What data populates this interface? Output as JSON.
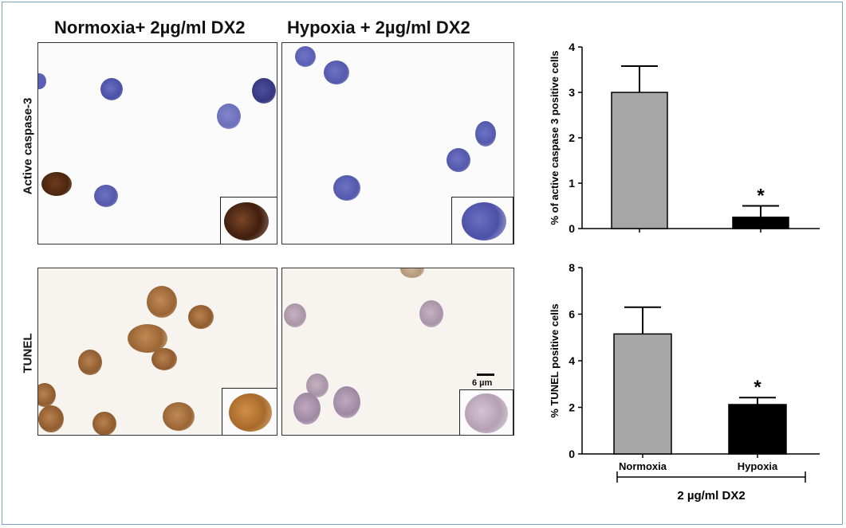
{
  "figure": {
    "column_titles": [
      "Normoxia+ 2µg/ml DX2",
      "Hypoxia + 2µg/ml DX2"
    ],
    "row_labels": [
      "Active caspase-3",
      "TUNEL"
    ],
    "scale_bar_label": "6 µm",
    "bracket_label": "2 µg/ml DX2",
    "significance_marker": "*"
  },
  "chart_data": [
    {
      "type": "bar",
      "categories": [
        "Normoxia",
        "Hypoxia"
      ],
      "values": [
        3.0,
        0.25
      ],
      "errors": [
        0.58,
        0.25
      ],
      "colors": [
        "#a6a6a6",
        "#000000"
      ],
      "significance": [
        "",
        "*"
      ],
      "ylabel": "% of active caspase 3 positive cells",
      "ylim": [
        0,
        4
      ],
      "yticks": [
        0,
        1,
        2,
        3,
        4
      ],
      "show_xlabels": false
    },
    {
      "type": "bar",
      "categories": [
        "Normoxia",
        "Hypoxia"
      ],
      "values": [
        5.15,
        2.12
      ],
      "errors": [
        1.15,
        0.3
      ],
      "colors": [
        "#a6a6a6",
        "#000000"
      ],
      "significance": [
        "",
        "*"
      ],
      "ylabel": "% TUNEL positive cells",
      "ylim": [
        0,
        8
      ],
      "yticks": [
        0,
        2,
        4,
        6,
        8
      ],
      "show_xlabels": true
    }
  ]
}
